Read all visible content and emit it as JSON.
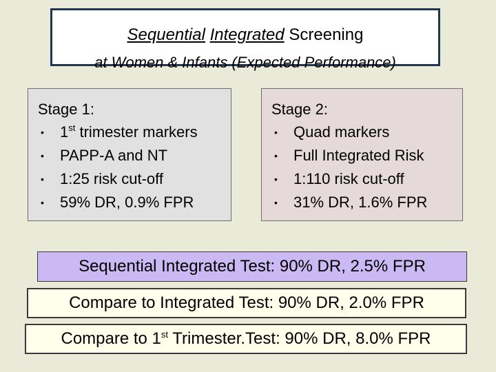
{
  "title": {
    "word1": "Sequential",
    "word2": "Integrated",
    "word3": "Screening",
    "line2": "at Women & Infants (Expected Performance)"
  },
  "stage1": {
    "heading": "Stage 1:",
    "items": [
      {
        "pre": "1",
        "sup": "st",
        "post": " trimester markers"
      },
      {
        "text": "PAPP-A and NT"
      },
      {
        "text": "1:25 risk cut-off"
      },
      {
        "text": "59% DR, 0.9% FPR"
      }
    ]
  },
  "stage2": {
    "heading": "Stage 2:",
    "items": [
      {
        "text": "Quad markers"
      },
      {
        "text": "Full Integrated Risk"
      },
      {
        "text": "1:110 risk cut-off"
      },
      {
        "text": "31% DR, 1.6% FPR"
      }
    ]
  },
  "bullet_glyph": "•",
  "results": {
    "sequential": "Sequential Integrated Test: 90% DR, 2.5% FPR",
    "integrated": "Compare to Integrated Test: 90% DR, 2.0% FPR",
    "first_trimester_pre": "Compare to 1",
    "first_trimester_sup": "st",
    "first_trimester_post": " Trimester.Test: 90% DR, 8.0% FPR"
  },
  "colors": {
    "background": "#e9ead8",
    "title_border": "#1f3550",
    "stage1_fill": "#e1e1e1",
    "stage2_fill": "#e6d9d9",
    "sequential_fill": "#ccb8f2",
    "compare_fill": "#ffffec"
  }
}
